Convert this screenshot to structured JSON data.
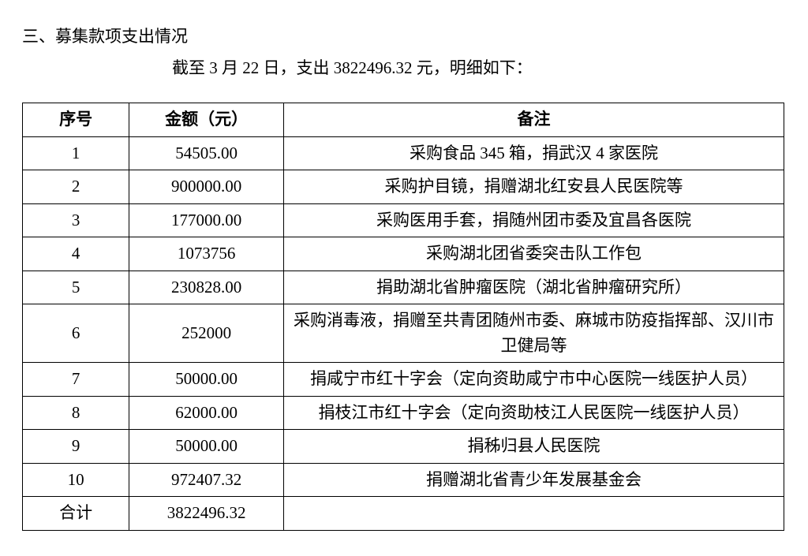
{
  "section_title": "三、募集款项支出情况",
  "intro_line": "截至 3 月 22 日，支出 3822496.32 元，明细如下：",
  "table": {
    "columns": {
      "seq": "序号",
      "amount": "金额（元）",
      "note": "备注"
    },
    "col_widths": {
      "seq": 130,
      "amount": 190,
      "note": 646
    },
    "header_font_weight": "bold",
    "cell_font_size": 21,
    "border_color": "#000000",
    "background_color": "#ffffff",
    "text_align": "center",
    "rows": [
      {
        "seq": "1",
        "amount": "54505.00",
        "note": "采购食品 345 箱，捐武汉 4 家医院"
      },
      {
        "seq": "2",
        "amount": "900000.00",
        "note": "采购护目镜，捐赠湖北红安县人民医院等"
      },
      {
        "seq": "3",
        "amount": "177000.00",
        "note": "采购医用手套，捐随州团市委及宜昌各医院"
      },
      {
        "seq": "4",
        "amount": "1073756",
        "note": "采购湖北团省委突击队工作包"
      },
      {
        "seq": "5",
        "amount": "230828.00",
        "note": "捐助湖北省肿瘤医院（湖北省肿瘤研究所）"
      },
      {
        "seq": "6",
        "amount": "252000",
        "note": "采购消毒液，捐赠至共青团随州市委、麻城市防疫指挥部、汉川市卫健局等"
      },
      {
        "seq": "7",
        "amount": "50000.00",
        "note": "捐咸宁市红十字会（定向资助咸宁市中心医院一线医护人员）"
      },
      {
        "seq": "8",
        "amount": "62000.00",
        "note": "捐枝江市红十字会（定向资助枝江人民医院一线医护人员）"
      },
      {
        "seq": "9",
        "amount": "50000.00",
        "note": "捐秭归县人民医院"
      },
      {
        "seq": "10",
        "amount": "972407.32",
        "note": "捐赠湖北省青少年发展基金会"
      }
    ],
    "total_row": {
      "seq": "合计",
      "amount": "3822496.32",
      "note": ""
    }
  }
}
